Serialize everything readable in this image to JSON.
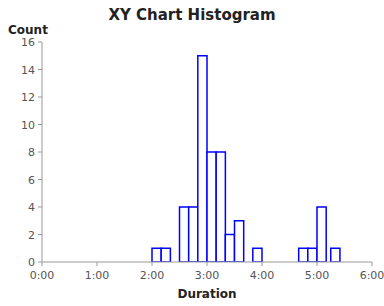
{
  "chart_data": {
    "type": "histogram",
    "title": "XY Chart Histogram",
    "x_label": "Duration",
    "y_label": "Count",
    "x": [
      2.0,
      2.167,
      2.5,
      2.667,
      2.833,
      3.0,
      3.167,
      3.333,
      3.5,
      3.833,
      4.667,
      4.833,
      5.0,
      5.25
    ],
    "values": [
      1,
      1,
      4,
      4,
      15,
      8,
      8,
      2,
      3,
      1,
      1,
      1,
      4,
      1
    ],
    "bin_width": 0.167,
    "color": "#0000FF",
    "xlim": [
      0,
      6
    ],
    "xticks": [
      {
        "value": 0,
        "label": "0:00"
      },
      {
        "value": 1,
        "label": "1:00"
      },
      {
        "value": 2,
        "label": "2:00"
      },
      {
        "value": 3,
        "label": "3:00"
      },
      {
        "value": 4,
        "label": "4:00"
      },
      {
        "value": 5,
        "label": "5:00"
      },
      {
        "value": 6,
        "label": "6:00"
      }
    ],
    "ylim": [
      0,
      16
    ],
    "yticks": [
      0,
      2,
      4,
      6,
      8,
      10,
      12,
      14,
      16
    ],
    "grid": false
  }
}
